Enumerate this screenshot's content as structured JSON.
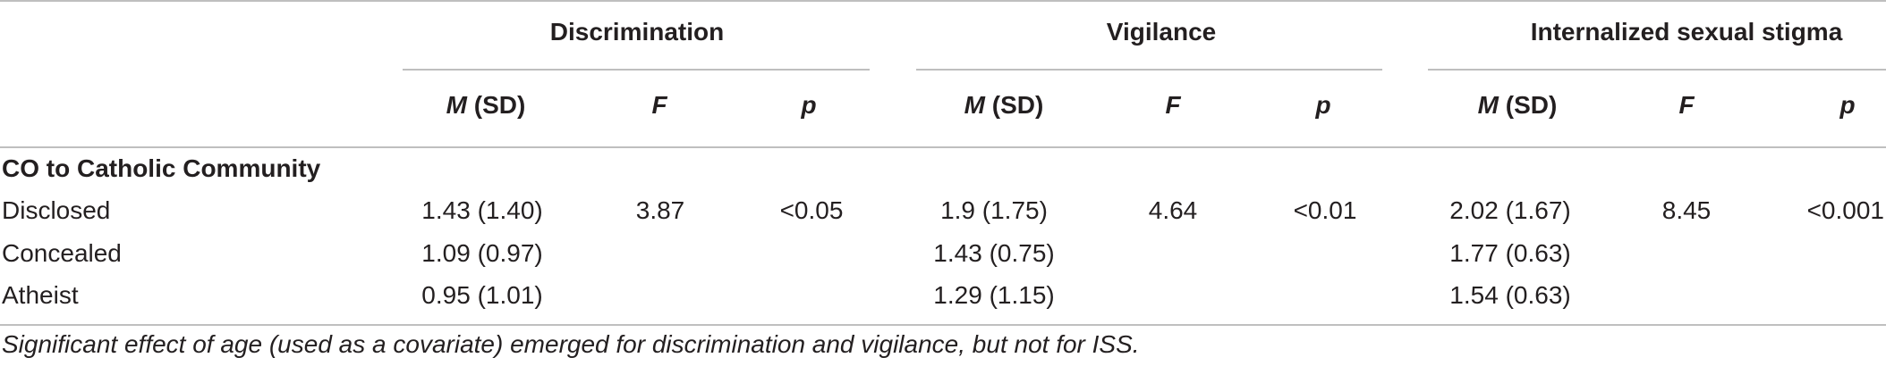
{
  "header": {
    "groups": [
      "Discrimination",
      "Vigilance",
      "Internalized sexual stigma"
    ],
    "subheaders": [
      {
        "italic": "M",
        "rest": " (SD)"
      },
      {
        "italic": "F",
        "rest": ""
      },
      {
        "italic": "p",
        "rest": ""
      }
    ]
  },
  "section": {
    "title": "CO to Catholic Community"
  },
  "rows": [
    {
      "label": "Disclosed",
      "disc": {
        "msd": "1.43 (1.40)",
        "f": "3.87",
        "p": "<0.05"
      },
      "vig": {
        "msd": "1.9 (1.75)",
        "f": "4.64",
        "p": "<0.01"
      },
      "iss": {
        "msd": "2.02 (1.67)",
        "f": "8.45",
        "p": "<0.001"
      }
    },
    {
      "label": "Concealed",
      "disc": {
        "msd": "1.09 (0.97)",
        "f": "",
        "p": ""
      },
      "vig": {
        "msd": "1.43 (0.75)",
        "f": "",
        "p": ""
      },
      "iss": {
        "msd": "1.77 (0.63)",
        "f": "",
        "p": ""
      }
    },
    {
      "label": "Atheist",
      "disc": {
        "msd": "0.95 (1.01)",
        "f": "",
        "p": ""
      },
      "vig": {
        "msd": "1.29 (1.15)",
        "f": "",
        "p": ""
      },
      "iss": {
        "msd": "1.54 (0.63)",
        "f": "",
        "p": ""
      }
    }
  ],
  "footnote": "Significant effect of age (used as a covariate) emerged for discrimination and vigilance, but not for ISS."
}
